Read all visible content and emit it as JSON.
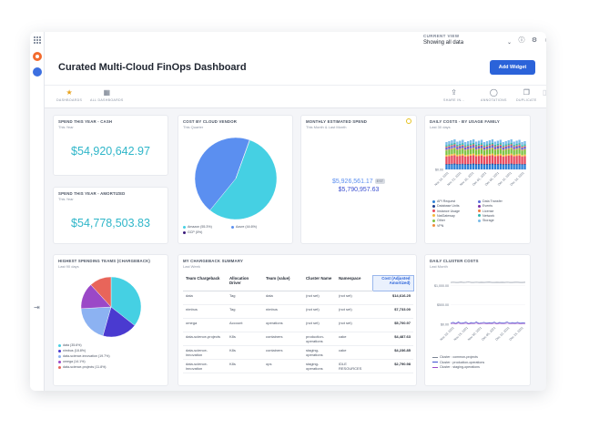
{
  "top": {
    "current_view_label": "CURRENT VIEW",
    "current_view_value": "Showing all data"
  },
  "header": {
    "title": "Curated Multi-Cloud FinOps Dashboard",
    "add_widget": "Add Widget"
  },
  "toolbar": {
    "dashboards": "DASHBOARDS",
    "all_dashboards": "ALL DASHBOARDS",
    "share": "SHARE IN...",
    "annotations": "ANNOTATIONS",
    "duplicate": "DUPLICATE"
  },
  "cards": {
    "cash": {
      "title": "SPEND THIS YEAR - CASH",
      "subtitle": "This Year",
      "value": "$54,920,642.97"
    },
    "amortized": {
      "title": "SPEND THIS YEAR - AMORTIZED",
      "subtitle": "This Year",
      "value": "$54,778,503.83"
    },
    "vendor": {
      "title": "COST BY CLOUD VENDOR",
      "subtitle": "This Quarter"
    },
    "monthly": {
      "title": "MONTHLY ESTIMATED SPEND",
      "subtitle": "This Month & Last Month",
      "value1": "$5,926,561.17",
      "value1_badge": "EST",
      "value2": "$5,790,957.63"
    },
    "usage": {
      "title": "DAILY COSTS - BY USAGE FAMILY",
      "subtitle": "Last 30 days"
    },
    "teams": {
      "title": "HIGHEST SPENDING TEAMS (CHARGEBACK)",
      "subtitle": "Last 90 days"
    },
    "chargeback": {
      "title": "MY CHARGEBACK SUMMARY",
      "subtitle": "Last Week"
    },
    "cluster": {
      "title": "DAILY CLUSTER COSTS",
      "subtitle": "Last Month"
    }
  },
  "chargeback_table": {
    "headers": [
      "Team Chargeback",
      "Allocation Driver",
      "Team (value)",
      "Cluster Name",
      "Namespace",
      "Cost (Adjusted Amortized)"
    ],
    "rows": [
      [
        "data",
        "Tag",
        "data",
        "(not set)",
        "(not set)",
        "$14,616.25"
      ],
      [
        "nimbus",
        "Tag",
        "nimbus",
        "(not set)",
        "(not set)",
        "$7,733.00"
      ],
      [
        "omega",
        "Account",
        "operations",
        "(not set)",
        "(not set)",
        "$5,700.97"
      ],
      [
        "data-science-projects",
        "K8s",
        "containers",
        "production-operations",
        "cake",
        "$4,487.63"
      ],
      [
        "data-science-innovation",
        "K8s",
        "containers",
        "staging-operations",
        "cake",
        "$4,236.85"
      ],
      [
        "data-science-innovation",
        "K8s",
        "ops",
        "staging-operations",
        "IDLE RESOURCES",
        "$2,790.98"
      ]
    ]
  },
  "chart_data": [
    {
      "type": "pie",
      "title": "COST BY CLOUD VENDOR",
      "labels": [
        "Amazon (55.3%)",
        "Azure (44.6%)",
        "GCP (0%)"
      ],
      "values": [
        55.3,
        44.6,
        0.1
      ],
      "colors": [
        "#45d0e3",
        "#5b8ff0",
        "#3a1a7a"
      ]
    },
    {
      "type": "bar",
      "title": "DAILY COSTS - BY USAGE FAMILY",
      "stacked": true,
      "ytick_labels": [
        "$0.00"
      ],
      "xtick_labels": [
        "Nov 16, 2021",
        "Nov 21, 2021",
        "Nov 26, 2021",
        "Dec 01, 2021",
        "Dec 06, 2021",
        "Dec 11, 2021",
        "Dec 16, 2021"
      ],
      "series": [
        {
          "name": "API Request",
          "color": "#2b7fd6"
        },
        {
          "name": "Database Units",
          "color": "#1b3a8c"
        },
        {
          "name": "Instance Usage",
          "color": "#e84a5f"
        },
        {
          "name": "NatGateway",
          "color": "#f4b93d"
        },
        {
          "name": "Other",
          "color": "#7cc242"
        },
        {
          "name": "VPN",
          "color": "#f08c3a"
        },
        {
          "name": "Data Transfer",
          "color": "#5a6ad8"
        },
        {
          "name": "Events",
          "color": "#7b2fa5"
        },
        {
          "name": "License",
          "color": "#f27a3f"
        },
        {
          "name": "Network",
          "color": "#31b6b0"
        },
        {
          "name": "Storage",
          "color": "#7bbbe8"
        }
      ]
    },
    {
      "type": "pie",
      "title": "HIGHEST SPENDING TEAMS (CHARGEBACK)",
      "labels": [
        "data (35.6%)",
        "nimbus (18.8%)",
        "data-science-innovation (19.7%)",
        "omega (14.1%)",
        "data-science-projects (11.8%)"
      ],
      "values": [
        35.6,
        18.8,
        19.7,
        14.1,
        11.8
      ],
      "colors": [
        "#45d0e3",
        "#4a3ad0",
        "#8cb2f2",
        "#9b48c7",
        "#e8655a"
      ]
    },
    {
      "type": "line",
      "title": "DAILY CLUSTER COSTS",
      "ytick_labels": [
        "$1,000.00",
        "$500.00",
        "$0.00"
      ],
      "ylim": [
        0,
        1200
      ],
      "xtick_labels": [
        "Nov 20, 2021",
        "Nov 25, 2021",
        "Nov 30, 2021",
        "Dec 05, 2021",
        "Dec 10, 2021",
        "Dec 15, 2021"
      ],
      "series": [
        {
          "name": "Cluster : common-projects",
          "color": "#7a8394",
          "values": [
            1080,
            1085,
            1080,
            1082,
            1086,
            1080,
            1083,
            1088,
            1080,
            1082,
            1085,
            1080,
            1084,
            1080,
            1083,
            1086,
            1080,
            1082,
            1084,
            1080,
            1083,
            1080,
            1085,
            1082,
            1080,
            1083,
            1084,
            1080,
            1082,
            1084
          ]
        },
        {
          "name": "Cluster : production-operations",
          "color": "#3b4fd0",
          "values": [
            30,
            50,
            20,
            60,
            25,
            40,
            55,
            18,
            45,
            30,
            60,
            22,
            38,
            50,
            28,
            42,
            35,
            55,
            20,
            48,
            30,
            40,
            58,
            25,
            45,
            32,
            50,
            28,
            40,
            35
          ]
        },
        {
          "name": "Cluster : staging-operations",
          "color": "#9b48c7",
          "values": [
            15,
            25,
            10,
            30,
            12,
            20,
            28,
            8,
            22,
            15,
            30,
            10,
            18,
            25,
            14,
            21,
            17,
            27,
            10,
            24,
            15,
            20,
            29,
            12,
            22,
            16,
            25,
            14,
            20,
            18
          ]
        }
      ]
    }
  ]
}
